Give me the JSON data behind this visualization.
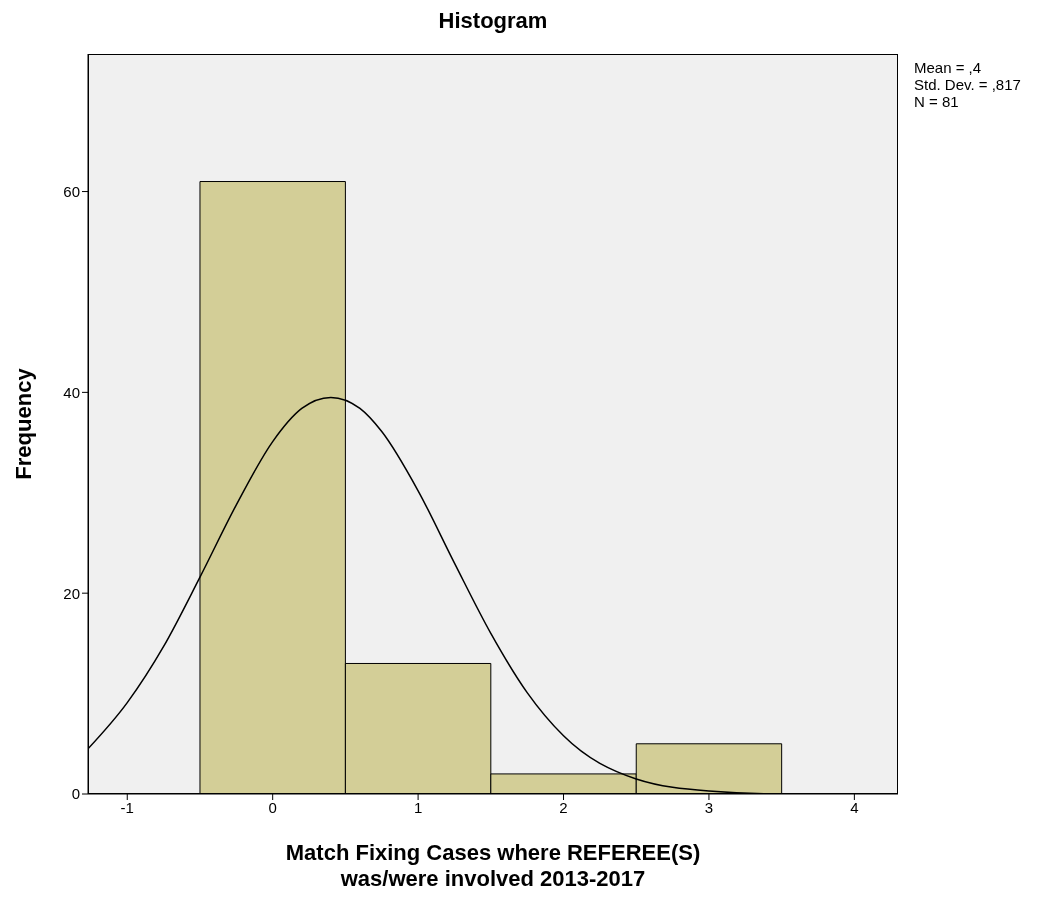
{
  "chart_data": {
    "type": "histogram",
    "title": "Histogram",
    "xlabel": "Match Fixing Cases where REFEREE(S) was/were involved 2013-2017",
    "ylabel": "Frequency",
    "bins": [
      -0.5,
      0.5,
      1.5,
      2.5,
      3.5
    ],
    "values": [
      61,
      13,
      2,
      5
    ],
    "color": "#d3ce97",
    "series": [
      {
        "type": "line",
        "color": "#000000",
        "x": [
          -1.27,
          -1,
          -0.75,
          -0.5,
          -0.25,
          0,
          0.2,
          0.4,
          0.6,
          0.75,
          1,
          1.25,
          1.5,
          1.75,
          2,
          2.5,
          3,
          3.5,
          4,
          4.3
        ],
        "values": [
          4.5,
          9.1,
          14.7,
          21.6,
          28.8,
          35.1,
          38.4,
          39.5,
          38.4,
          36.1,
          30.2,
          23,
          16,
          10.1,
          5.8,
          1.5,
          0.3,
          0,
          0,
          0
        ]
      }
    ],
    "xlim": [
      -1.27,
      4.3
    ],
    "xticks": [
      -1,
      0,
      1,
      2,
      3,
      4
    ],
    "ylim": [
      0,
      73.7
    ],
    "yticks": [
      0,
      20,
      40,
      60
    ],
    "annotations": [
      "Mean = ,4",
      "Std. Dev. = ,817",
      "N = 81"
    ]
  }
}
